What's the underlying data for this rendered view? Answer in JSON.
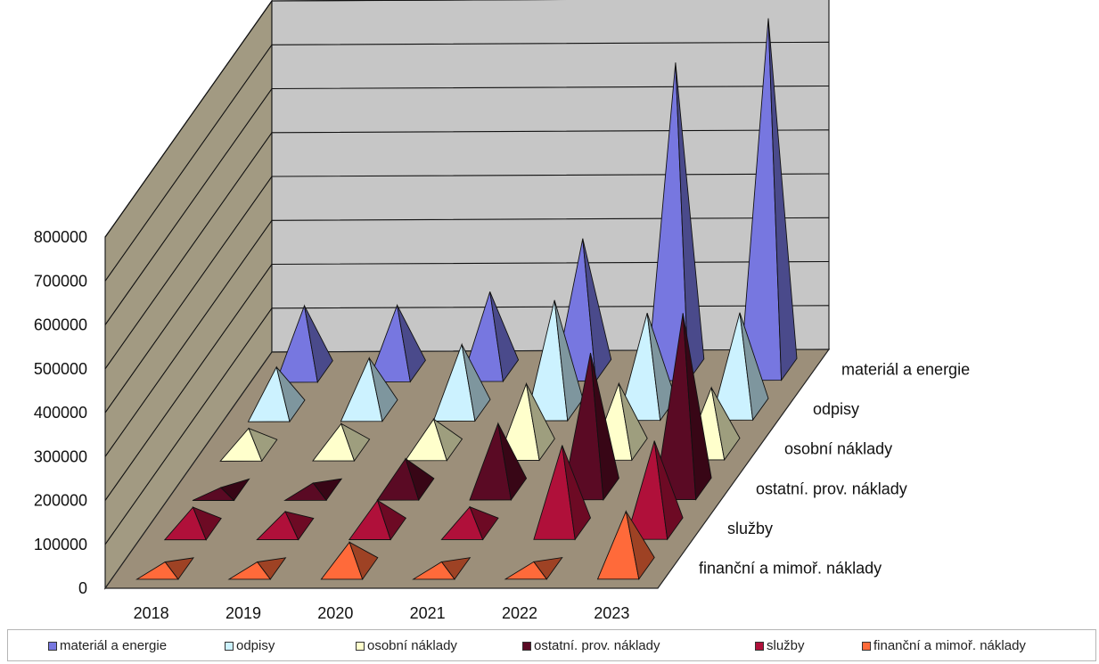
{
  "chart_data": {
    "type": "bar",
    "subtype": "3d-pyramid",
    "title": "",
    "xlabel": "",
    "ylabel": "",
    "ylim": [
      0,
      800000
    ],
    "y_ticks": [
      "0",
      "100000",
      "200000",
      "300000",
      "400000",
      "500000",
      "600000",
      "700000",
      "800000"
    ],
    "categories": [
      "2018",
      "2019",
      "2020",
      "2021",
      "2022",
      "2023"
    ],
    "series": [
      {
        "name": "finanční a mimoř. náklady",
        "color": "#ff6a3a",
        "values": [
          15000,
          15000,
          60000,
          15000,
          15000,
          130000
        ]
      },
      {
        "name": "služby",
        "color": "#b0103a",
        "values": [
          50000,
          40000,
          65000,
          50000,
          190000,
          200000
        ]
      },
      {
        "name": "ostatní. prov. náklady",
        "color": "#5a0a24",
        "values": [
          5000,
          15000,
          70000,
          150000,
          310000,
          400000
        ]
      },
      {
        "name": "osobní náklady",
        "color": "#ffffcc",
        "values": [
          50000,
          60000,
          70000,
          150000,
          150000,
          140000
        ]
      },
      {
        "name": "odpisy",
        "color": "#ccf2ff",
        "values": [
          100000,
          120000,
          150000,
          250000,
          220000,
          220000
        ]
      },
      {
        "name": "materiál a energie",
        "color": "#7777e0",
        "values": [
          150000,
          150000,
          180000,
          300000,
          700000,
          800000
        ]
      }
    ],
    "legend_position": "bottom",
    "grid": true
  }
}
